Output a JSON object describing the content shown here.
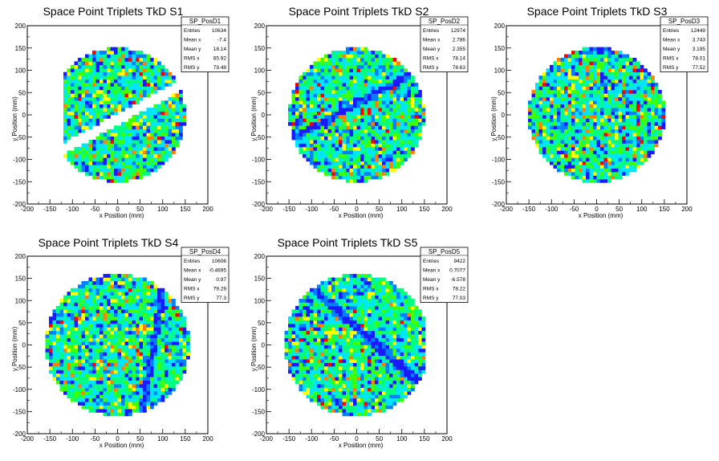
{
  "chart_data": [
    {
      "type": "heatmap",
      "title": "Space Point Triplets TkD S1",
      "xlabel": "x Position (mm)",
      "ylabel": "y Position (mm)",
      "xlim": [
        -200,
        200
      ],
      "ylim": [
        -200,
        200
      ],
      "xticks": [
        "-200",
        "-150",
        "-100",
        "-50",
        "0",
        "50",
        "100",
        "150",
        "200"
      ],
      "yticks": [
        "-200",
        "-150",
        "-100",
        "-50",
        "0",
        "50",
        "100",
        "150",
        "200"
      ],
      "stats": {
        "name": "SP_PosD1",
        "rows": [
          {
            "label": "Entries",
            "value": "10634"
          },
          {
            "label": "Mean x",
            "value": "-7.4"
          },
          {
            "label": "Mean y",
            "value": "18.14"
          },
          {
            "label": "RMS x",
            "value": "65.92"
          },
          {
            "label": "RMS y",
            "value": "79.48"
          }
        ]
      },
      "radius": 150,
      "gaps": [
        [
          -1,
          0.55,
          -10,
          12
        ]
      ],
      "cutoffs": [
        -120,
        150
      ],
      "seed": 11
    },
    {
      "type": "heatmap",
      "title": "Space Point Triplets TkD S2",
      "xlabel": "x Position (mm)",
      "ylabel": "y Position (mm)",
      "xlim": [
        -200,
        200
      ],
      "ylim": [
        -200,
        200
      ],
      "xticks": [
        "-200",
        "-150",
        "-100",
        "-50",
        "0",
        "50",
        "100",
        "150",
        "200"
      ],
      "yticks": [
        "-200",
        "-150",
        "-100",
        "-50",
        "0",
        "50",
        "100",
        "150",
        "200"
      ],
      "stats": {
        "name": "SP_PosD2",
        "rows": [
          {
            "label": "Entries",
            "value": "12974"
          },
          {
            "label": "Mean x",
            "value": "2.786"
          },
          {
            "label": "Mean y",
            "value": "2.355"
          },
          {
            "label": "RMS x",
            "value": "78.14"
          },
          {
            "label": "RMS y",
            "value": "78.63"
          }
        ]
      },
      "radius": 150,
      "lowbands": [
        [
          0.55,
          0,
          25,
          8
        ]
      ],
      "cutoffs": [
        -160,
        160
      ],
      "seed": 22
    },
    {
      "type": "heatmap",
      "title": "Space Point Triplets TkD S3",
      "xlabel": "x Position (mm)",
      "ylabel": "y Position (mm)",
      "xlim": [
        -200,
        200
      ],
      "ylim": [
        -200,
        200
      ],
      "xticks": [
        "-200",
        "-150",
        "-100",
        "-50",
        "0",
        "50",
        "100",
        "150",
        "200"
      ],
      "yticks": [
        "-200",
        "-150",
        "-100",
        "-50",
        "0",
        "50",
        "100",
        "150",
        "200"
      ],
      "stats": {
        "name": "SP_PosD3",
        "rows": [
          {
            "label": "Entries",
            "value": "12449"
          },
          {
            "label": "Mean x",
            "value": "3.743"
          },
          {
            "label": "Mean y",
            "value": "3.195"
          },
          {
            "label": "RMS x",
            "value": "78.01"
          },
          {
            "label": "RMS y",
            "value": "77.52"
          }
        ]
      },
      "radius": 152,
      "cutoffs": [
        -160,
        160
      ],
      "seed": 33
    },
    {
      "type": "heatmap",
      "title": "Space Point Triplets TkD S4",
      "xlabel": "x Position (mm)",
      "ylabel": "y Position (mm)",
      "xlim": [
        -200,
        200
      ],
      "ylim": [
        -200,
        200
      ],
      "xticks": [
        "-200",
        "-150",
        "-100",
        "-50",
        "0",
        "50",
        "100",
        "150",
        "200"
      ],
      "yticks": [
        "-200",
        "-150",
        "-100",
        "-50",
        "0",
        "50",
        "100",
        "150",
        "200"
      ],
      "stats": {
        "name": "SP_PosD4",
        "rows": [
          {
            "label": "Entries",
            "value": "10606"
          },
          {
            "label": "Mean x",
            "value": "-0.4695"
          },
          {
            "label": "Mean y",
            "value": "0.97"
          },
          {
            "label": "RMS x",
            "value": "79.29"
          },
          {
            "label": "RMS y",
            "value": "77.3"
          }
        ]
      },
      "radius": 160,
      "lowbands": [
        [
          -6,
          80,
          0,
          8
        ]
      ],
      "cutoffs": [
        -160,
        160
      ],
      "seed": 44
    },
    {
      "type": "heatmap",
      "title": "Space Point Triplets TkD S5",
      "xlabel": "x Position (mm)",
      "ylabel": "y Position (mm)",
      "xlim": [
        -200,
        200
      ],
      "ylim": [
        -200,
        200
      ],
      "xticks": [
        "-200",
        "-150",
        "-100",
        "-50",
        "0",
        "50",
        "100",
        "150",
        "200"
      ],
      "yticks": [
        "-200",
        "-150",
        "-100",
        "-50",
        "0",
        "50",
        "100",
        "150",
        "200"
      ],
      "stats": {
        "name": "SP_PosD5",
        "rows": [
          {
            "label": "Entries",
            "value": "9422"
          },
          {
            "label": "Mean x",
            "value": "0.7077"
          },
          {
            "label": "Mean y",
            "value": "-6.578"
          },
          {
            "label": "RMS x",
            "value": "78.22"
          },
          {
            "label": "RMS y",
            "value": "77.03"
          }
        ]
      },
      "radius": 160,
      "lowbands": [
        [
          -0.9,
          60,
          40,
          10
        ]
      ],
      "cutoffs": [
        -160,
        155
      ],
      "seed": 55
    }
  ],
  "colors": {
    "palette": [
      "#1a1aff",
      "#0080ff",
      "#00e5ff",
      "#00ff80",
      "#40ff00",
      "#ffff00",
      "#ff8000",
      "#ff0000"
    ]
  }
}
